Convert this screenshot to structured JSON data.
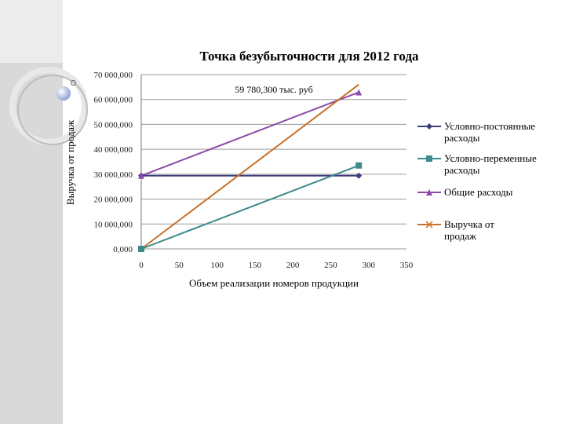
{
  "chart_data": {
    "type": "line",
    "title": "Точка безубыточности для 2012 года",
    "xlabel": "Объем реализации номеров продукции",
    "ylabel": "Выручка от продаж",
    "x_ticks": [
      "0",
      "50",
      "100",
      "150",
      "200",
      "250",
      "300",
      "350"
    ],
    "y_ticks": [
      "0,000",
      "10 000,000",
      "20 000,000",
      "30 000,000",
      "40 000,000",
      "50 000,000",
      "60 000,000",
      "70 000,000"
    ],
    "xlim": [
      0,
      350
    ],
    "ylim": [
      0,
      70000000
    ],
    "grid": "horizontal",
    "legend_position": "right",
    "annotation": "59 780,300 тыс. руб",
    "series": [
      {
        "name": "Условно-постоянные расходы",
        "color": "#3c3c7c",
        "marker": "diamond",
        "x": [
          0,
          287
        ],
        "y": [
          29400000,
          29400000
        ]
      },
      {
        "name": "Условно-переменные расходы",
        "color": "#3e8a8a",
        "marker": "square",
        "x": [
          0,
          287
        ],
        "y": [
          0,
          33500000
        ]
      },
      {
        "name": "Общие расходы",
        "color": "#8b4aa6",
        "marker": "triangle",
        "x": [
          0,
          287
        ],
        "y": [
          29400000,
          62900000
        ]
      },
      {
        "name": "Выручка от продаж",
        "color": "#c8702a",
        "marker": "x",
        "x": [
          0,
          287
        ],
        "y": [
          0,
          66000000
        ]
      }
    ]
  }
}
